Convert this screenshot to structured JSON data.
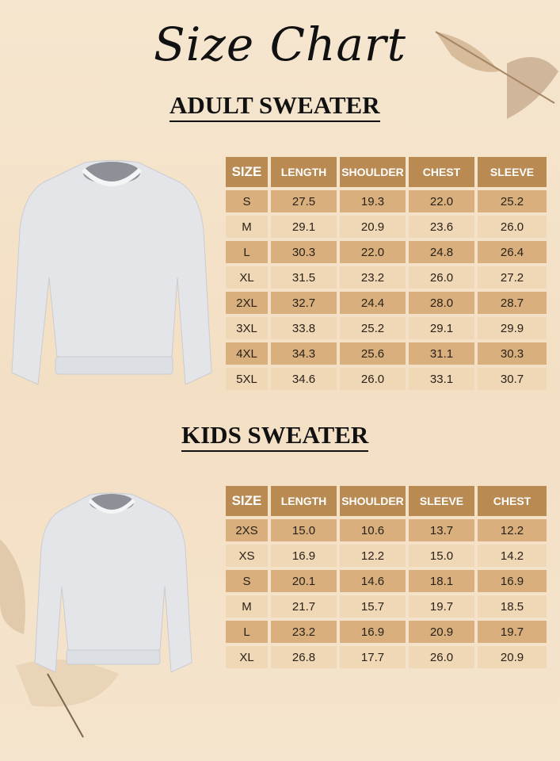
{
  "title": "Size Chart",
  "adult": {
    "heading": "ADULT SWEATER",
    "columns": [
      "SIZE",
      "LENGTH",
      "SHOULDER",
      "CHEST",
      "SLEEVE"
    ],
    "rows": [
      [
        "S",
        "27.5",
        "19.3",
        "22.0",
        "25.2"
      ],
      [
        "M",
        "29.1",
        "20.9",
        "23.6",
        "26.0"
      ],
      [
        "L",
        "30.3",
        "22.0",
        "24.8",
        "26.4"
      ],
      [
        "XL",
        "31.5",
        "23.2",
        "26.0",
        "27.2"
      ],
      [
        "2XL",
        "32.7",
        "24.4",
        "28.0",
        "28.7"
      ],
      [
        "3XL",
        "33.8",
        "25.2",
        "29.1",
        "29.9"
      ],
      [
        "4XL",
        "34.3",
        "25.6",
        "31.1",
        "30.3"
      ],
      [
        "5XL",
        "34.6",
        "26.0",
        "33.1",
        "30.7"
      ]
    ]
  },
  "kids": {
    "heading": "KIDS SWEATER",
    "columns": [
      "SIZE",
      "LENGTH",
      "SHOULDER",
      "SLEEVE",
      "CHEST"
    ],
    "rows": [
      [
        "2XS",
        "15.0",
        "10.6",
        "13.7",
        "12.2"
      ],
      [
        "XS",
        "16.9",
        "12.2",
        "15.0",
        "14.2"
      ],
      [
        "S",
        "20.1",
        "14.6",
        "18.1",
        "16.9"
      ],
      [
        "M",
        "21.7",
        "15.7",
        "19.7",
        "18.5"
      ],
      [
        "L",
        "23.2",
        "16.9",
        "20.9",
        "19.7"
      ],
      [
        "XL",
        "26.8",
        "17.7",
        "26.0",
        "20.9"
      ]
    ]
  },
  "colors": {
    "header": "#b98a52",
    "row_dark": "#d8af7d",
    "row_light": "#f0d7b5",
    "background": "#f5e3cb"
  },
  "images": [
    "adult-sweater-image",
    "kids-sweater-image"
  ]
}
